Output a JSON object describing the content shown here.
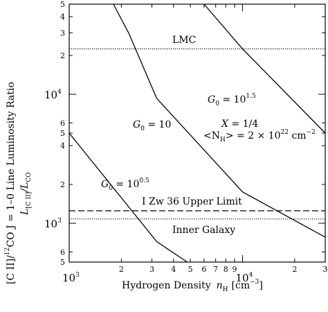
{
  "chart_data": {
    "type": "line",
    "x_scale": "log",
    "y_scale": "log",
    "xlim": [
      1000,
      30000
    ],
    "ylim": [
      500,
      50000
    ],
    "xlabel": {
      "text": "Hydrogen Density",
      "symbol": "n",
      "symbol_sub": "H",
      "unit": "[cm",
      "unit_sup": "−3",
      "unit_end": "]"
    },
    "ylabel": {
      "line1": "[C II]/",
      "line1_sup": "12",
      "line1_rest": "CO J = 1–0 Line Luminosity Ratio",
      "line2": "L",
      "line2_sub": "[C II]",
      "line2_mid": "/L",
      "line2_sub2": "CO"
    },
    "x_major_ticks": [
      {
        "value": 1000,
        "base": "10",
        "exp": "3"
      },
      {
        "value": 10000,
        "base": "10",
        "exp": "4"
      }
    ],
    "x_minor_ticks": [
      {
        "value": 2000,
        "label": "2"
      },
      {
        "value": 3000,
        "label": "3"
      },
      {
        "value": 4000,
        "label": "4"
      },
      {
        "value": 5000,
        "label": "5"
      },
      {
        "value": 6000,
        "label": "6"
      },
      {
        "value": 7000,
        "label": "7"
      },
      {
        "value": 8000,
        "label": "8"
      },
      {
        "value": 9000,
        "label": "9"
      },
      {
        "value": 20000,
        "label": "2"
      },
      {
        "value": 30000,
        "label": "3"
      }
    ],
    "y_major_ticks": [
      {
        "value": 1000,
        "base": "10",
        "exp": "3"
      },
      {
        "value": 10000,
        "base": "10",
        "exp": "4"
      }
    ],
    "y_minor_ticks": [
      {
        "value": 500,
        "label": "5"
      },
      {
        "value": 600,
        "label": "6"
      },
      {
        "value": 2000,
        "label": "2"
      },
      {
        "value": 4000,
        "label": "4"
      },
      {
        "value": 5000,
        "label": "5"
      },
      {
        "value": 6000,
        "label": "6"
      },
      {
        "value": 20000,
        "label": "2"
      },
      {
        "value": 30000,
        "label": "3"
      },
      {
        "value": 40000,
        "label": "4"
      },
      {
        "value": 50000,
        "label": "5"
      }
    ],
    "series": [
      {
        "label_base": "G",
        "label_sub": "0",
        "label_eq": " = 10",
        "label_sup": "0.5",
        "x": [
          1000,
          3200,
          4800
        ],
        "y": [
          5000,
          720,
          500
        ]
      },
      {
        "label_base": "G",
        "label_sub": "0",
        "label_eq": " = 10",
        "label_sup": "",
        "x": [
          1800,
          2200,
          3200,
          10000,
          30000
        ],
        "y": [
          50000,
          30000,
          9300,
          1750,
          780
        ]
      },
      {
        "label_base": "G",
        "label_sub": "0",
        "label_eq": " = 10",
        "label_sup": "1.5",
        "x": [
          6000,
          10000,
          30000
        ],
        "y": [
          50000,
          22500,
          5000
        ]
      }
    ],
    "reference_lines": [
      {
        "name": "LMC",
        "y": 22500,
        "style": "dotted"
      },
      {
        "name": "I Zw 36 Upper Limit",
        "y": 1250,
        "style": "dashed"
      },
      {
        "name": "Inner Galaxy",
        "y": 1080,
        "style": "dotted"
      }
    ],
    "annotation": {
      "x_line": "X = 1/4",
      "n_line_a": "<N",
      "n_line_sub": "H",
      "n_line_b": "> = 2 × 10",
      "n_line_sup": "22",
      "n_line_c": " cm",
      "n_line_sup2": "−2"
    },
    "grid": false,
    "legend": "none"
  }
}
